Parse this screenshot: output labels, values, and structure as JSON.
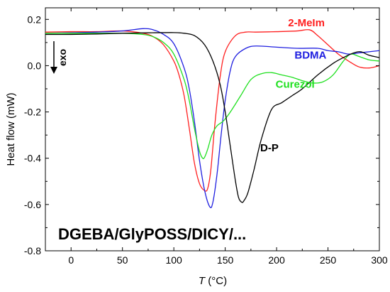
{
  "chart_data": {
    "type": "line",
    "title": "",
    "xlabel_italic": "T",
    "xlabel_unit": " (°C)",
    "ylabel": "Heat flow (mW)",
    "xlim": [
      -25,
      300
    ],
    "ylim": [
      -0.8,
      0.25
    ],
    "xticks": [
      0,
      50,
      100,
      150,
      200,
      250,
      300
    ],
    "yticks": [
      -0.8,
      -0.6,
      -0.4,
      -0.2,
      0.0,
      0.2
    ],
    "xtick_labels": [
      "0",
      "50",
      "100",
      "150",
      "200",
      "250",
      "300"
    ],
    "ytick_labels": [
      "-0.8",
      "-0.6",
      "-0.4",
      "-0.2",
      "0.0",
      "0.2"
    ],
    "grid": false,
    "annotation": "DGEBA/GlyPOSS/DICY/...",
    "exo_label": "exo",
    "series": [
      {
        "name": "2-MeIm",
        "color": "#ff2020",
        "x": [
          -25,
          0,
          25,
          50,
          70,
          80,
          90,
          100,
          105,
          110,
          115,
          120,
          125,
          130,
          133,
          136,
          140,
          145,
          150,
          160,
          170,
          180,
          200,
          220,
          232,
          240,
          250,
          260,
          270,
          280,
          290,
          300
        ],
        "y": [
          0.145,
          0.147,
          0.147,
          0.15,
          0.14,
          0.125,
          0.09,
          0.02,
          -0.04,
          -0.13,
          -0.27,
          -0.42,
          -0.51,
          -0.54,
          -0.53,
          -0.45,
          -0.25,
          -0.05,
          0.06,
          0.13,
          0.145,
          0.145,
          0.147,
          0.15,
          0.155,
          0.13,
          0.09,
          0.05,
          0.02,
          -0.005,
          -0.01,
          0.0
        ]
      },
      {
        "name": "BDMA",
        "color": "#2020e0",
        "x": [
          -25,
          0,
          25,
          50,
          70,
          80,
          90,
          100,
          110,
          115,
          120,
          125,
          130,
          135,
          138,
          142,
          146,
          150,
          155,
          160,
          170,
          180,
          200,
          220,
          240,
          250,
          260,
          270,
          280,
          290,
          300
        ],
        "y": [
          0.14,
          0.142,
          0.145,
          0.15,
          0.16,
          0.155,
          0.135,
          0.095,
          -0.01,
          -0.1,
          -0.24,
          -0.41,
          -0.54,
          -0.61,
          -0.59,
          -0.47,
          -0.3,
          -0.15,
          -0.02,
          0.04,
          0.075,
          0.085,
          0.08,
          0.075,
          0.075,
          0.065,
          0.06,
          0.05,
          0.055,
          0.06,
          0.065
        ]
      },
      {
        "name": "Curezol",
        "color": "#20e020",
        "x": [
          -25,
          0,
          25,
          50,
          70,
          80,
          90,
          100,
          110,
          115,
          120,
          125,
          128,
          130,
          133,
          137,
          142,
          148,
          155,
          165,
          175,
          185,
          195,
          205,
          215,
          225,
          235,
          245,
          255,
          265,
          272,
          280,
          290,
          300
        ],
        "y": [
          0.14,
          0.14,
          0.14,
          0.14,
          0.135,
          0.125,
          0.1,
          0.05,
          -0.06,
          -0.15,
          -0.27,
          -0.37,
          -0.4,
          -0.395,
          -0.36,
          -0.3,
          -0.26,
          -0.24,
          -0.2,
          -0.13,
          -0.06,
          -0.035,
          -0.03,
          -0.04,
          -0.05,
          -0.065,
          -0.075,
          -0.07,
          -0.04,
          0.02,
          0.05,
          0.04,
          0.025,
          0.02
        ]
      },
      {
        "name": "D-P",
        "color": "#000000",
        "x": [
          -25,
          0,
          25,
          50,
          75,
          100,
          110,
          120,
          130,
          138,
          145,
          150,
          155,
          160,
          163,
          166,
          168,
          172,
          178,
          185,
          195,
          205,
          215,
          225,
          240,
          255,
          265,
          275,
          282,
          290,
          300
        ],
        "y": [
          0.135,
          0.135,
          0.137,
          0.14,
          0.142,
          0.143,
          0.14,
          0.13,
          0.09,
          0.02,
          -0.08,
          -0.2,
          -0.35,
          -0.5,
          -0.57,
          -0.59,
          -0.585,
          -0.55,
          -0.45,
          -0.32,
          -0.19,
          -0.16,
          -0.13,
          -0.1,
          -0.04,
          0.01,
          0.035,
          0.055,
          0.06,
          0.045,
          0.035
        ]
      }
    ],
    "series_labels": [
      {
        "text": "2-MeIm",
        "color": "#ff2020",
        "x": 229,
        "y": 0.17
      },
      {
        "text": "BDMA",
        "color": "#2020e0",
        "x": 233,
        "y": 0.03
      },
      {
        "text": "Curezol",
        "color": "#20e020",
        "x": 218,
        "y": -0.095
      },
      {
        "text": "D-P",
        "color": "#000000",
        "x": 193,
        "y": -0.37
      }
    ]
  }
}
